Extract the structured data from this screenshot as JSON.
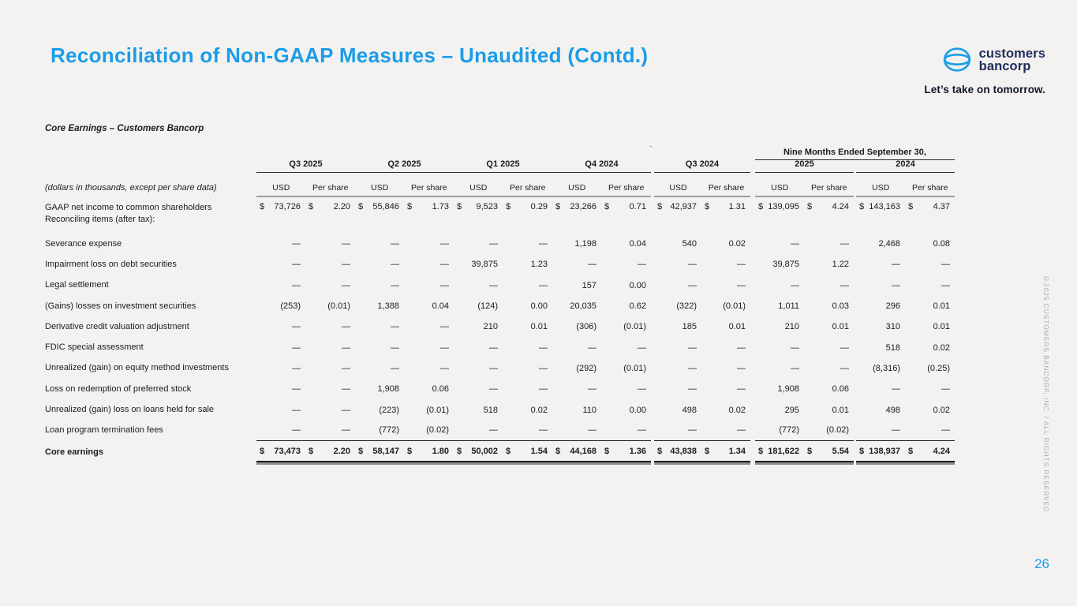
{
  "slide": {
    "title": "Reconciliation of Non-GAAP Measures – Unaudited (Contd.)",
    "page_number": "26",
    "copyright": "©2025 CUSTOMERS BANCORP, INC. / ALL RIGHTS RESERVED",
    "accent_color": "#1b9ce8",
    "navy_color": "#1e2d5a",
    "logo": {
      "name_line1": "customers",
      "name_line2": "bancorp",
      "tagline": "Let’s take on tomorrow."
    }
  },
  "table": {
    "title": "Core Earnings – Customers Bancorp",
    "units_note": "(dollars in thousands, except per share data)",
    "span_header": "Nine Months Ended September 30,",
    "stray_mark": "`",
    "col_groups": [
      "Q3 2025",
      "Q2 2025",
      "Q1 2025",
      "Q4 2024",
      "Q3 2024",
      "2025",
      "2024"
    ],
    "sub_headers": [
      "USD",
      "Per share"
    ],
    "rows": [
      {
        "label": "GAAP net income to common shareholders",
        "label2": "Reconciling items (after tax):",
        "dollar": true,
        "values": [
          "73,726",
          "2.20",
          "55,846",
          "1.73",
          "9,523",
          "0.29",
          "23,266",
          "0.71",
          "42,937",
          "1.31",
          "139,095",
          "4.24",
          "143,163",
          "4.37"
        ]
      },
      {
        "label": "Severance expense",
        "values": [
          "—",
          "—",
          "—",
          "—",
          "—",
          "—",
          "1,198",
          "0.04",
          "540",
          "0.02",
          "—",
          "—",
          "2,468",
          "0.08"
        ]
      },
      {
        "label": "Impairment loss on debt securities",
        "values": [
          "—",
          "—",
          "—",
          "—",
          "39,875",
          "1.23",
          "—",
          "—",
          "—",
          "—",
          "39,875",
          "1.22",
          "—",
          "—"
        ]
      },
      {
        "label": "Legal settlement",
        "values": [
          "—",
          "—",
          "—",
          "—",
          "—",
          "—",
          "157",
          "0.00",
          "—",
          "—",
          "—",
          "—",
          "—",
          "—"
        ]
      },
      {
        "label": "(Gains) losses on investment securities",
        "values": [
          "(253)",
          "(0.01)",
          "1,388",
          "0.04",
          "(124)",
          "0.00",
          "20,035",
          "0.62",
          "(322)",
          "(0.01)",
          "1,011",
          "0.03",
          "296",
          "0.01"
        ]
      },
      {
        "label": "Derivative credit valuation adjustment",
        "values": [
          "—",
          "—",
          "—",
          "—",
          "210",
          "0.01",
          "(306)",
          "(0.01)",
          "185",
          "0.01",
          "210",
          "0.01",
          "310",
          "0.01"
        ]
      },
      {
        "label": "FDIC special assessment",
        "values": [
          "—",
          "—",
          "—",
          "—",
          "—",
          "—",
          "—",
          "—",
          "—",
          "—",
          "—",
          "—",
          "518",
          "0.02"
        ]
      },
      {
        "label": "Unrealized (gain) on equity method investments",
        "values": [
          "—",
          "—",
          "—",
          "—",
          "—",
          "—",
          "(292)",
          "(0.01)",
          "—",
          "—",
          "—",
          "—",
          "(8,316)",
          "(0.25)"
        ]
      },
      {
        "label": "Loss on redemption of preferred stock",
        "values": [
          "—",
          "—",
          "1,908",
          "0.06",
          "—",
          "—",
          "—",
          "—",
          "—",
          "—",
          "1,908",
          "0.06",
          "—",
          "—"
        ]
      },
      {
        "label": "Unrealized (gain) loss on loans held for sale",
        "values": [
          "—",
          "—",
          "(223)",
          "(0.01)",
          "518",
          "0.02",
          "110",
          "0.00",
          "498",
          "0.02",
          "295",
          "0.01",
          "498",
          "0.02"
        ]
      },
      {
        "label": "Loan program termination fees",
        "values": [
          "—",
          "—",
          "(772)",
          "(0.02)",
          "—",
          "—",
          "—",
          "—",
          "—",
          "—",
          "(772)",
          "(0.02)",
          "—",
          "—"
        ]
      },
      {
        "label": "Core earnings",
        "dollar": true,
        "total": true,
        "values": [
          "73,473",
          "2.20",
          "58,147",
          "1.80",
          "50,002",
          "1.54",
          "44,168",
          "1.36",
          "43,838",
          "1.34",
          "181,622",
          "5.54",
          "138,937",
          "4.24"
        ]
      }
    ]
  }
}
